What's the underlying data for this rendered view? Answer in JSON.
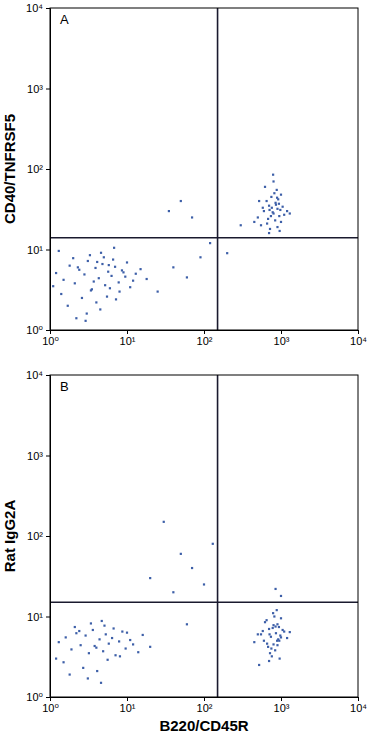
{
  "chart_data": [
    {
      "type": "scatter",
      "annotation": "A",
      "y_label": "CD40/TNFRSF5",
      "color": "#3d5fa8",
      "marker": "square",
      "log": true,
      "xlim": [
        1,
        10000
      ],
      "ylim": [
        1,
        10000
      ],
      "xticks": [
        {
          "value": 1,
          "label": "10⁰"
        },
        {
          "value": 10,
          "label": "10¹"
        },
        {
          "value": 100,
          "label": "10²"
        },
        {
          "value": 1000,
          "label": "10³"
        },
        {
          "value": 10000,
          "label": "10⁴"
        }
      ],
      "yticks": [
        {
          "value": 1,
          "label": "10⁰"
        },
        {
          "value": 10,
          "label": "10¹"
        },
        {
          "value": 100,
          "label": "10²"
        },
        {
          "value": 1000,
          "label": "10³"
        },
        {
          "value": 10000,
          "label": "10⁴"
        }
      ],
      "gate": {
        "x": 150,
        "y": 14
      },
      "x": [
        1.2,
        1.5,
        1.8,
        2.1,
        2.4,
        2.8,
        3.1,
        3.5,
        3.9,
        4.3,
        4.8,
        5.2,
        5.7,
        6.3,
        7.0,
        7.8,
        8.6,
        9.5,
        11,
        13,
        1.4,
        2.0,
        2.6,
        3.3,
        4.0,
        4.6,
        5.5,
        6.6,
        8.0,
        10,
        12,
        15,
        18,
        1.1,
        1.7,
        2.3,
        3.0,
        3.7,
        4.5,
        5.0,
        6.0,
        7.2,
        9.0,
        2.2,
        3.4,
        4.1,
        5.8,
        1.3,
        2.9,
        6.8,
        25,
        40,
        60,
        90,
        35,
        70,
        120,
        50,
        200,
        300,
        500,
        600,
        700,
        800,
        900,
        1000,
        1100,
        650,
        750,
        850,
        950,
        550,
        720,
        820,
        920,
        1050,
        680,
        780,
        880,
        980,
        450,
        620,
        760,
        860,
        1200,
        700,
        800,
        900,
        580,
        1000,
        740,
        840,
        940,
        660,
        1300,
        520,
        790,
        890,
        710,
        960
      ],
      "values": [
        5.1,
        4.2,
        6.3,
        3.8,
        5.6,
        4.9,
        7.2,
        3.2,
        5.9,
        4.4,
        6.6,
        3.6,
        5.3,
        4.7,
        6.1,
        3.9,
        5.5,
        4.6,
        3.4,
        5.0,
        2.8,
        7.8,
        2.5,
        8.5,
        2.2,
        9.1,
        2.6,
        7.5,
        3.0,
        6.9,
        4.1,
        5.7,
        4.3,
        3.5,
        2.0,
        6.0,
        1.6,
        4.0,
        1.8,
        8.0,
        3.3,
        2.4,
        5.2,
        1.4,
        3.1,
        7.0,
        6.4,
        9.6,
        1.3,
        10.5,
        3.0,
        6.0,
        4.5,
        8.0,
        30,
        25,
        12,
        40,
        9,
        20,
        25,
        30,
        35,
        28,
        32,
        22,
        27,
        40,
        45,
        38,
        26,
        20,
        18,
        50,
        42,
        34,
        24,
        29,
        55,
        31,
        22,
        60,
        33,
        36,
        30,
        16,
        70,
        19,
        33,
        48,
        26,
        23,
        37,
        21,
        28,
        40,
        85,
        44,
        31,
        17
      ]
    },
    {
      "type": "scatter",
      "annotation": "B",
      "y_label": "Rat IgG2A",
      "x_label": "B220/CD45R",
      "color": "#3d5fa8",
      "marker": "square",
      "log": true,
      "xlim": [
        1,
        10000
      ],
      "ylim": [
        1,
        10000
      ],
      "xticks": [
        {
          "value": 1,
          "label": "10⁰"
        },
        {
          "value": 10,
          "label": "10¹"
        },
        {
          "value": 100,
          "label": "10²"
        },
        {
          "value": 1000,
          "label": "10³"
        },
        {
          "value": 10000,
          "label": "10⁴"
        }
      ],
      "yticks": [
        {
          "value": 1,
          "label": "10⁰"
        },
        {
          "value": 10,
          "label": "10¹"
        },
        {
          "value": 100,
          "label": "10²"
        },
        {
          "value": 1000,
          "label": "10³"
        },
        {
          "value": 10000,
          "label": "10⁴"
        }
      ],
      "gate": {
        "x": 150,
        "y": 15
      },
      "x": [
        1.3,
        1.6,
        1.9,
        2.2,
        2.5,
        2.9,
        3.2,
        3.6,
        4.0,
        4.4,
        4.9,
        5.3,
        5.8,
        6.4,
        7.1,
        7.9,
        8.7,
        9.6,
        11,
        14,
        1.5,
        2.1,
        2.7,
        3.4,
        4.1,
        4.7,
        5.6,
        6.7,
        8.1,
        10,
        12,
        16,
        20,
        1.2,
        1.8,
        2.4,
        3.1,
        3.8,
        4.6,
        5.1,
        20,
        50,
        100,
        30,
        70,
        40,
        130,
        60,
        850,
        1000,
        500,
        600,
        700,
        800,
        900,
        1000,
        1100,
        650,
        750,
        850,
        950,
        550,
        720,
        820,
        920,
        1050,
        680,
        780,
        880,
        980,
        450,
        620,
        760,
        860,
        1200,
        700,
        800,
        900,
        580,
        1000,
        740,
        840,
        940,
        660,
        1300,
        520,
        790,
        890,
        710,
        960
      ],
      "values": [
        4.8,
        5.5,
        3.9,
        6.2,
        4.4,
        5.8,
        3.5,
        6.8,
        4.1,
        5.2,
        3.7,
        6.0,
        4.6,
        5.4,
        3.3,
        4.9,
        6.5,
        4.0,
        5.1,
        3.6,
        2.7,
        7.4,
        2.3,
        8.2,
        2.1,
        8.8,
        2.9,
        7.1,
        3.2,
        6.3,
        4.5,
        5.9,
        4.2,
        3.0,
        1.9,
        6.6,
        1.7,
        4.3,
        1.5,
        7.7,
        30,
        60,
        25,
        150,
        40,
        20,
        80,
        8,
        22,
        18,
        6,
        5,
        7,
        4.5,
        8,
        5.5,
        6.5,
        9,
        4,
        7.5,
        5,
        6,
        3.5,
        10,
        5.2,
        6.8,
        4.2,
        7.2,
        12,
        5.8,
        4.8,
        8.5,
        3.2,
        6.2,
        5.4,
        2.8,
        7.8,
        4.4,
        6.6,
        9.5,
        5.6,
        3.8,
        7.4,
        4.6,
        6.4,
        2.5,
        11,
        5,
        6,
        3
      ]
    }
  ]
}
